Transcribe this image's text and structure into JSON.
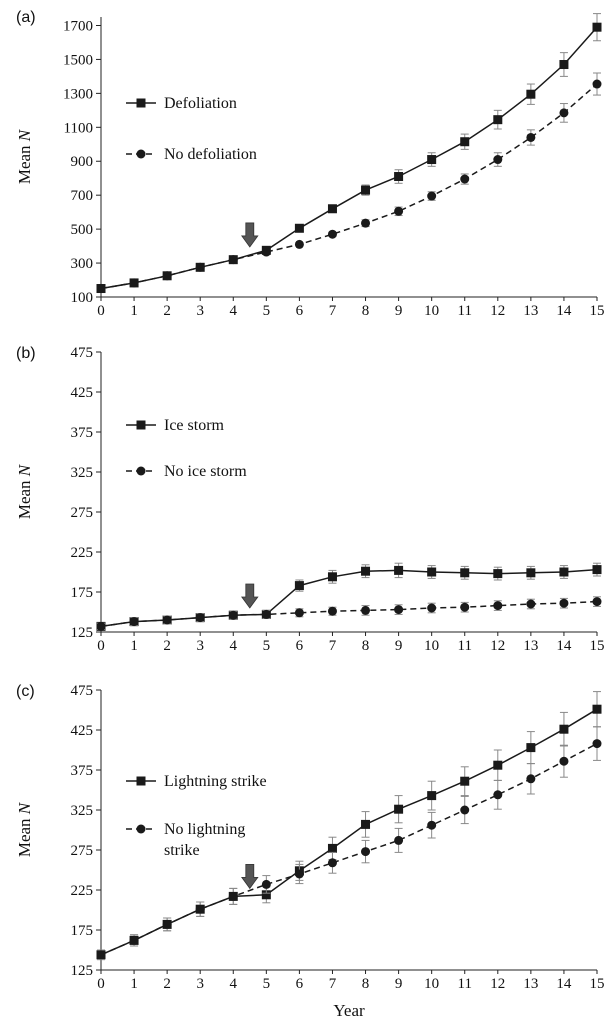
{
  "figure": {
    "xlabel": "Year",
    "colors": {
      "line": "#1a1a1a",
      "error": "#888888",
      "arrow": "#555555",
      "arrow_outline": "#333333"
    }
  },
  "chart_data": [
    {
      "type": "line",
      "panel": "(a)",
      "xlabel": "",
      "ylabel": "Mean N",
      "ylim": [
        100,
        1750
      ],
      "yticks": [
        100,
        300,
        500,
        700,
        900,
        1100,
        1300,
        1500,
        1700
      ],
      "xlim": [
        0,
        15
      ],
      "x": [
        0,
        1,
        2,
        3,
        4,
        5,
        6,
        7,
        8,
        9,
        10,
        11,
        12,
        13,
        14,
        15
      ],
      "arrow_x": 4.5,
      "arrow_value": 395,
      "legend_position": "left",
      "series": [
        {
          "name": "Defoliation",
          "style": "solid",
          "marker": "square",
          "values": [
            150,
            183,
            225,
            275,
            320,
            375,
            505,
            620,
            730,
            810,
            910,
            1015,
            1145,
            1295,
            1470,
            1690
          ],
          "errors": [
            0,
            0,
            0,
            0,
            0,
            0,
            15,
            20,
            30,
            40,
            40,
            45,
            55,
            60,
            70,
            80
          ]
        },
        {
          "name": "No defoliation",
          "style": "dashed",
          "marker": "circle",
          "values": [
            150,
            183,
            225,
            275,
            320,
            365,
            410,
            470,
            535,
            605,
            695,
            795,
            910,
            1040,
            1185,
            1355
          ],
          "errors": [
            0,
            0,
            0,
            0,
            0,
            0,
            10,
            12,
            20,
            25,
            25,
            30,
            40,
            45,
            55,
            65
          ]
        }
      ]
    },
    {
      "type": "line",
      "panel": "(b)",
      "xlabel": "",
      "ylabel": "Mean N",
      "ylim": [
        125,
        475
      ],
      "yticks": [
        125,
        175,
        225,
        275,
        325,
        375,
        425,
        475
      ],
      "xlim": [
        0,
        15
      ],
      "x": [
        0,
        1,
        2,
        3,
        4,
        5,
        6,
        7,
        8,
        9,
        10,
        11,
        12,
        13,
        14,
        15
      ],
      "arrow_x": 4.5,
      "arrow_value": 155,
      "legend_position": "left",
      "series": [
        {
          "name": "Ice storm",
          "style": "solid",
          "marker": "square",
          "values": [
            132,
            138,
            140,
            143,
            146,
            147,
            183,
            194,
            201,
            202,
            200,
            199,
            198,
            199,
            200,
            203
          ],
          "errors": [
            4,
            5,
            5,
            5,
            5,
            5,
            7,
            8,
            8,
            9,
            8,
            8,
            8,
            8,
            8,
            8
          ]
        },
        {
          "name": "No ice storm",
          "style": "dashed",
          "marker": "circle",
          "values": [
            132,
            138,
            140,
            143,
            146,
            147,
            149,
            151,
            152,
            153,
            155,
            156,
            158,
            160,
            161,
            163
          ],
          "errors": [
            4,
            5,
            5,
            5,
            5,
            5,
            5,
            5,
            6,
            6,
            6,
            6,
            6,
            6,
            6,
            6
          ]
        }
      ]
    },
    {
      "type": "line",
      "panel": "(c)",
      "xlabel": "Year",
      "ylabel": "Mean N",
      "ylim": [
        125,
        475
      ],
      "yticks": [
        125,
        175,
        225,
        275,
        325,
        375,
        425,
        475
      ],
      "xlim": [
        0,
        15
      ],
      "x": [
        0,
        1,
        2,
        3,
        4,
        5,
        6,
        7,
        8,
        9,
        10,
        11,
        12,
        13,
        14,
        15
      ],
      "arrow_x": 4.5,
      "arrow_value": 227,
      "legend_position": "left",
      "series": [
        {
          "name": "Lightning strike",
          "style": "solid",
          "marker": "square",
          "values": [
            144,
            162,
            182,
            201,
            217,
            219,
            249,
            277,
            307,
            326,
            343,
            361,
            381,
            403,
            426,
            451
          ],
          "errors": [
            6,
            7,
            8,
            9,
            10,
            10,
            12,
            14,
            16,
            17,
            18,
            18,
            19,
            20,
            21,
            22
          ]
        },
        {
          "name": "No lightning strike",
          "style": "dashed",
          "marker": "circle",
          "values": [
            144,
            162,
            182,
            201,
            217,
            232,
            245,
            259,
            273,
            287,
            306,
            325,
            344,
            364,
            386,
            408
          ],
          "errors": [
            6,
            7,
            8,
            9,
            10,
            11,
            12,
            13,
            14,
            15,
            16,
            17,
            18,
            19,
            20,
            21
          ]
        }
      ]
    }
  ]
}
